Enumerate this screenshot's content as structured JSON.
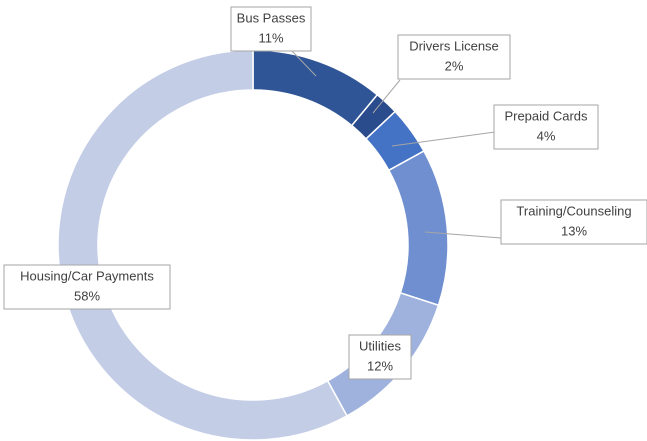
{
  "chart_data": {
    "type": "donut",
    "categories": [
      "Bus Passes",
      "Drivers License",
      "Prepaid Cards",
      "Training/Counseling",
      "Utilities",
      "Housing/Car Payments"
    ],
    "values": [
      11,
      2,
      4,
      13,
      12,
      58
    ],
    "value_labels": [
      "11%",
      "2%",
      "4%",
      "13%",
      "12%",
      "58%"
    ],
    "colors": [
      "#2f5597",
      "#2b4c8c",
      "#4472c4",
      "#6f8fd0",
      "#9fb1dd",
      "#c3cde6"
    ]
  }
}
